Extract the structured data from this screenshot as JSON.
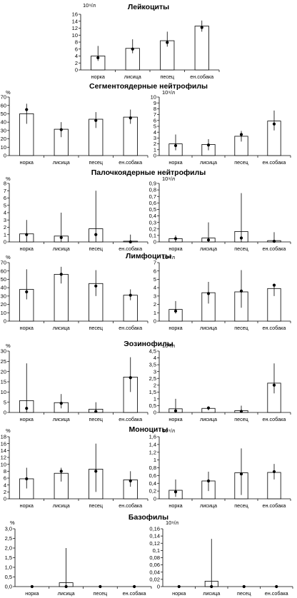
{
  "categories": [
    "норка",
    "лисица",
    "песец",
    "ен.собака"
  ],
  "chart_data": [
    {
      "type": "bar",
      "title": "Лейкоциты",
      "unit": "10⁹/л",
      "categories": [
        "норка",
        "лисица",
        "песец",
        "ен.собака"
      ],
      "ylim": [
        0,
        16
      ],
      "yticks": [
        "0",
        "2",
        "4",
        "6",
        "8",
        "10",
        "12",
        "14",
        "16"
      ],
      "values": [
        4.0,
        6.2,
        8.4,
        12.6
      ],
      "points": [
        3.5,
        6.0,
        7.9,
        12.2
      ],
      "err_low": [
        2.6,
        4.8,
        6.7,
        11.0
      ],
      "err_high": [
        6.9,
        8.8,
        11.0,
        14.2
      ]
    },
    {
      "type": "bar",
      "title": "Сегментоядерные нейтрофилы",
      "unit": "%",
      "categories": [
        "норка",
        "лисица",
        "песец",
        "ен.собака"
      ],
      "ylim": [
        0,
        70
      ],
      "yticks": [
        "0",
        "10",
        "20",
        "30",
        "40",
        "50",
        "60",
        "70"
      ],
      "values": [
        50,
        31.5,
        43.5,
        46
      ],
      "points": [
        55,
        31,
        42,
        45
      ],
      "err_low": [
        38,
        22,
        33,
        38
      ],
      "err_high": [
        62,
        40,
        52,
        55
      ]
    },
    {
      "type": "bar",
      "title": "",
      "unit": "10⁹/л",
      "categories": [
        "норка",
        "лисица",
        "песец",
        "ен.собака"
      ],
      "ylim": [
        0,
        10
      ],
      "yticks": [
        "0",
        "1",
        "2",
        "3",
        "4",
        "5",
        "6",
        "7",
        "8",
        "9",
        "10"
      ],
      "values": [
        2.0,
        1.9,
        3.3,
        5.9
      ],
      "points": [
        1.7,
        1.8,
        3.6,
        5.4
      ],
      "err_low": [
        0.9,
        0.9,
        2.4,
        4.3
      ],
      "err_high": [
        3.6,
        2.8,
        4.2,
        7.7
      ]
    },
    {
      "type": "bar",
      "title": "Палочкоядерные нейтрофилы",
      "unit": "%",
      "categories": [
        "норка",
        "лисица",
        "песец",
        "ен.собака"
      ],
      "ylim": [
        0,
        8
      ],
      "yticks": [
        "0",
        "1",
        "2",
        "3",
        "4",
        "5",
        "6",
        "7",
        "8"
      ],
      "values": [
        1.1,
        0.8,
        1.8,
        0.1
      ],
      "points": [
        1.0,
        0.6,
        1.0,
        0.0
      ],
      "err_low": [
        0.0,
        0.0,
        0.0,
        0.0
      ],
      "err_high": [
        3.0,
        4.0,
        7.0,
        1.0
      ]
    },
    {
      "type": "bar",
      "title": "",
      "unit": "10⁹/л",
      "categories": [
        "норка",
        "лисица",
        "песец",
        "ен.собака"
      ],
      "ylim": [
        0,
        0.9
      ],
      "yticks": [
        "0",
        "0,1",
        "0,2",
        "0,3",
        "0,4",
        "0,5",
        "0,6",
        "0,7",
        "0,8",
        "0,9"
      ],
      "values": [
        0.05,
        0.06,
        0.16,
        0.02
      ],
      "points": [
        0.05,
        0.03,
        0.06,
        0.01
      ],
      "err_low": [
        0.0,
        0.0,
        0.0,
        0.0
      ],
      "err_high": [
        0.1,
        0.3,
        0.75,
        0.15
      ]
    },
    {
      "type": "bar",
      "title": "Лимфоциты",
      "unit": "%",
      "categories": [
        "норка",
        "лисица",
        "песец",
        "ен.собака"
      ],
      "ylim": [
        0,
        70
      ],
      "yticks": [
        "0",
        "10",
        "20",
        "30",
        "40",
        "50",
        "60",
        "70"
      ],
      "values": [
        38,
        56,
        45,
        31
      ],
      "points": [
        35,
        56,
        42,
        31
      ],
      "err_low": [
        26,
        45,
        30,
        25
      ],
      "err_high": [
        62,
        65,
        61,
        38
      ]
    },
    {
      "type": "bar",
      "title": "",
      "unit": "10⁹/л",
      "categories": [
        "норка",
        "лисица",
        "песец",
        "ен.собака"
      ],
      "ylim": [
        0,
        7
      ],
      "yticks": [
        "0",
        "1",
        "2",
        "3",
        "4",
        "5",
        "6",
        "7"
      ],
      "values": [
        1.4,
        3.4,
        3.5,
        3.9
      ],
      "points": [
        1.2,
        3.3,
        3.6,
        4.3
      ],
      "err_low": [
        0.9,
        2.1,
        1.6,
        3.0
      ],
      "err_high": [
        2.4,
        4.7,
        6.1,
        4.4
      ]
    },
    {
      "type": "bar",
      "title": "Эозинофилы",
      "unit": "%",
      "categories": [
        "норка",
        "лисица",
        "песец",
        "ен.собака"
      ],
      "ylim": [
        0,
        30
      ],
      "yticks": [
        "0",
        "5",
        "10",
        "15",
        "20",
        "25",
        "30"
      ],
      "values": [
        5.8,
        4.8,
        1.6,
        17.3
      ],
      "points": [
        2.0,
        4.5,
        0.5,
        17.0
      ],
      "err_low": [
        0.0,
        2.0,
        0.0,
        10.0
      ],
      "err_high": [
        24.0,
        9.0,
        5.0,
        27.0
      ]
    },
    {
      "type": "bar",
      "title": "",
      "unit": "10⁹/л",
      "categories": [
        "норка",
        "лисица",
        "песец",
        "ен.собака"
      ],
      "ylim": [
        0,
        4.5
      ],
      "yticks": [
        "0",
        "0,5",
        "1",
        "1,5",
        "2",
        "2,5",
        "3",
        "3,5",
        "4",
        "4,5"
      ],
      "values": [
        0.27,
        0.3,
        0.13,
        2.15
      ],
      "points": [
        0.12,
        0.33,
        0.08,
        2.0
      ],
      "err_low": [
        0.0,
        0.15,
        0.0,
        1.4
      ],
      "err_high": [
        1.0,
        0.45,
        0.5,
        3.6
      ]
    },
    {
      "type": "bar",
      "title": "Моноциты",
      "unit": "%",
      "categories": [
        "норка",
        "лисица",
        "песец",
        "ен.собака"
      ],
      "ylim": [
        0,
        18
      ],
      "yticks": [
        "0",
        "2",
        "4",
        "6",
        "8",
        "10",
        "12",
        "14",
        "16",
        "18"
      ],
      "values": [
        5.8,
        7.4,
        8.6,
        5.5
      ],
      "points": [
        5.8,
        8.0,
        8.0,
        5.2
      ],
      "err_low": [
        3.0,
        5.0,
        2.0,
        3.5
      ],
      "err_high": [
        9.0,
        9.0,
        16.0,
        8.0
      ]
    },
    {
      "type": "bar",
      "title": "",
      "unit": "10⁹/л",
      "categories": [
        "норка",
        "лисица",
        "песец",
        "ен.собака"
      ],
      "ylim": [
        0,
        1.6
      ],
      "yticks": [
        "0",
        "0,2",
        "0,4",
        "0,6",
        "0,8",
        "1",
        "1,2",
        "1,4",
        "1,6"
      ],
      "values": [
        0.22,
        0.46,
        0.67,
        0.68
      ],
      "points": [
        0.18,
        0.46,
        0.64,
        0.7
      ],
      "err_low": [
        0.05,
        0.2,
        0.1,
        0.5
      ],
      "err_high": [
        0.5,
        0.7,
        1.3,
        0.9
      ]
    },
    {
      "type": "bar",
      "title": "Базофилы",
      "unit": "%",
      "categories": [
        "норка",
        "лисица",
        "песец",
        "ен.собака"
      ],
      "ylim": [
        0,
        3.0
      ],
      "yticks": [
        "0,0",
        "0,5",
        "1,0",
        "1,5",
        "2,0",
        "2,5",
        "3,0"
      ],
      "values": [
        0,
        0.2,
        0,
        0
      ],
      "points": [
        0,
        0,
        0,
        0
      ],
      "err_low": [
        0,
        0,
        0,
        0
      ],
      "err_high": [
        0,
        2.0,
        0,
        0
      ]
    },
    {
      "type": "bar",
      "title": "",
      "unit": "10⁹/л",
      "categories": [
        "норка",
        "лисица",
        "песец",
        "ен.собака"
      ],
      "ylim": [
        0,
        0.16
      ],
      "yticks": [
        "0",
        "0,02",
        "0,04",
        "0,06",
        "0,08",
        "0,1",
        "0,12",
        "0,14",
        "0,16"
      ],
      "values": [
        0,
        0.015,
        0,
        0
      ],
      "points": [
        0,
        0,
        0,
        0
      ],
      "err_low": [
        0,
        0,
        0,
        0
      ],
      "err_high": [
        0,
        0.132,
        0,
        0
      ]
    }
  ]
}
